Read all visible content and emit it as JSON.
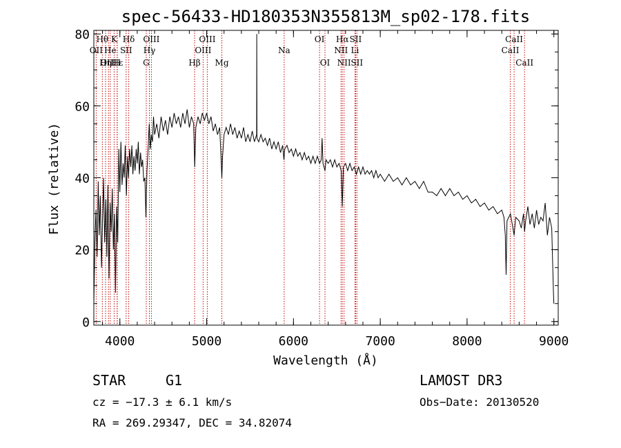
{
  "chart_data": {
    "type": "line",
    "title": "spec-56433-HD180353N355813M_sp02-178.fits",
    "xlabel": "Wavelength (Å)",
    "ylabel": "Flux (relative)",
    "xlim": [
      3700,
      9050
    ],
    "ylim": [
      -1,
      81
    ],
    "x_major_ticks": [
      4000,
      5000,
      6000,
      7000,
      8000,
      9000
    ],
    "x_minor_step": 200,
    "y_major_ticks": [
      0,
      20,
      40,
      60,
      80
    ],
    "y_minor_step": 5,
    "grid": false,
    "series": [
      {
        "name": "flux",
        "points": [
          [
            3700,
            5
          ],
          [
            3712,
            22
          ],
          [
            3725,
            31
          ],
          [
            3738,
            18
          ],
          [
            3750,
            39
          ],
          [
            3762,
            24
          ],
          [
            3775,
            35
          ],
          [
            3788,
            15
          ],
          [
            3800,
            28
          ],
          [
            3812,
            40
          ],
          [
            3825,
            22
          ],
          [
            3838,
            34
          ],
          [
            3850,
            18
          ],
          [
            3862,
            38
          ],
          [
            3875,
            12
          ],
          [
            3888,
            33
          ],
          [
            3900,
            25
          ],
          [
            3912,
            37
          ],
          [
            3925,
            20
          ],
          [
            3938,
            30
          ],
          [
            3950,
            8
          ],
          [
            3962,
            32
          ],
          [
            3975,
            22
          ],
          [
            3988,
            48
          ],
          [
            4000,
            36
          ],
          [
            4012,
            50
          ],
          [
            4025,
            38
          ],
          [
            4038,
            44
          ],
          [
            4050,
            40
          ],
          [
            4062,
            49
          ],
          [
            4075,
            35
          ],
          [
            4088,
            46
          ],
          [
            4100,
            40
          ],
          [
            4112,
            48
          ],
          [
            4125,
            43
          ],
          [
            4138,
            49
          ],
          [
            4150,
            41
          ],
          [
            4162,
            46
          ],
          [
            4175,
            42
          ],
          [
            4188,
            48
          ],
          [
            4200,
            44
          ],
          [
            4212,
            50
          ],
          [
            4225,
            41
          ],
          [
            4238,
            47
          ],
          [
            4250,
            43
          ],
          [
            4262,
            45
          ],
          [
            4275,
            39
          ],
          [
            4288,
            40
          ],
          [
            4300,
            29
          ],
          [
            4312,
            42
          ],
          [
            4325,
            48
          ],
          [
            4338,
            55
          ],
          [
            4350,
            48
          ],
          [
            4362,
            52
          ],
          [
            4375,
            50
          ],
          [
            4388,
            57
          ],
          [
            4400,
            52
          ],
          [
            4425,
            55
          ],
          [
            4450,
            51
          ],
          [
            4475,
            57
          ],
          [
            4500,
            53
          ],
          [
            4525,
            56
          ],
          [
            4550,
            52
          ],
          [
            4575,
            57
          ],
          [
            4600,
            54
          ],
          [
            4625,
            58
          ],
          [
            4650,
            55
          ],
          [
            4675,
            57
          ],
          [
            4700,
            54
          ],
          [
            4725,
            58
          ],
          [
            4750,
            55
          ],
          [
            4775,
            59
          ],
          [
            4800,
            54
          ],
          [
            4825,
            57
          ],
          [
            4850,
            55
          ],
          [
            4862,
            43
          ],
          [
            4875,
            54
          ],
          [
            4900,
            57
          ],
          [
            4925,
            55
          ],
          [
            4950,
            58
          ],
          [
            4975,
            56
          ],
          [
            5000,
            58
          ],
          [
            5025,
            55
          ],
          [
            5050,
            57
          ],
          [
            5075,
            53
          ],
          [
            5100,
            55
          ],
          [
            5125,
            52
          ],
          [
            5150,
            54
          ],
          [
            5167,
            45
          ],
          [
            5175,
            40
          ],
          [
            5183,
            46
          ],
          [
            5200,
            52
          ],
          [
            5225,
            54
          ],
          [
            5250,
            52
          ],
          [
            5275,
            55
          ],
          [
            5300,
            52
          ],
          [
            5325,
            54
          ],
          [
            5350,
            51
          ],
          [
            5375,
            53
          ],
          [
            5400,
            51
          ],
          [
            5425,
            54
          ],
          [
            5450,
            50
          ],
          [
            5475,
            52
          ],
          [
            5500,
            50
          ],
          [
            5525,
            53
          ],
          [
            5550,
            50
          ],
          [
            5575,
            52
          ],
          [
            5577,
            80
          ],
          [
            5579,
            51
          ],
          [
            5600,
            50
          ],
          [
            5625,
            52
          ],
          [
            5650,
            50
          ],
          [
            5675,
            51
          ],
          [
            5700,
            49
          ],
          [
            5725,
            51
          ],
          [
            5750,
            48
          ],
          [
            5775,
            50
          ],
          [
            5800,
            48
          ],
          [
            5825,
            50
          ],
          [
            5850,
            47
          ],
          [
            5875,
            49
          ],
          [
            5890,
            45
          ],
          [
            5900,
            48
          ],
          [
            5925,
            49
          ],
          [
            5950,
            47
          ],
          [
            5975,
            48
          ],
          [
            6000,
            46
          ],
          [
            6025,
            48
          ],
          [
            6050,
            46
          ],
          [
            6075,
            47
          ],
          [
            6100,
            45
          ],
          [
            6125,
            47
          ],
          [
            6150,
            45
          ],
          [
            6175,
            46
          ],
          [
            6200,
            44
          ],
          [
            6225,
            46
          ],
          [
            6250,
            44
          ],
          [
            6275,
            46
          ],
          [
            6300,
            44
          ],
          [
            6320,
            45
          ],
          [
            6330,
            51
          ],
          [
            6340,
            44
          ],
          [
            6363,
            42
          ],
          [
            6375,
            45
          ],
          [
            6400,
            44
          ],
          [
            6425,
            45
          ],
          [
            6450,
            43
          ],
          [
            6475,
            45
          ],
          [
            6500,
            43
          ],
          [
            6525,
            44
          ],
          [
            6550,
            42
          ],
          [
            6563,
            32
          ],
          [
            6575,
            43
          ],
          [
            6600,
            44
          ],
          [
            6625,
            42
          ],
          [
            6650,
            44
          ],
          [
            6675,
            42
          ],
          [
            6700,
            43
          ],
          [
            6725,
            41
          ],
          [
            6750,
            43
          ],
          [
            6775,
            41
          ],
          [
            6800,
            43
          ],
          [
            6825,
            41
          ],
          [
            6850,
            42
          ],
          [
            6875,
            41
          ],
          [
            6900,
            42
          ],
          [
            6925,
            40
          ],
          [
            6950,
            42
          ],
          [
            6975,
            40
          ],
          [
            7000,
            41
          ],
          [
            7050,
            39
          ],
          [
            7100,
            41
          ],
          [
            7150,
            39
          ],
          [
            7200,
            40
          ],
          [
            7250,
            38
          ],
          [
            7300,
            40
          ],
          [
            7350,
            38
          ],
          [
            7400,
            39
          ],
          [
            7450,
            37
          ],
          [
            7500,
            39
          ],
          [
            7550,
            36
          ],
          [
            7600,
            36
          ],
          [
            7650,
            35
          ],
          [
            7700,
            37
          ],
          [
            7750,
            35
          ],
          [
            7800,
            37
          ],
          [
            7850,
            35
          ],
          [
            7900,
            36
          ],
          [
            7950,
            34
          ],
          [
            8000,
            35
          ],
          [
            8050,
            33
          ],
          [
            8100,
            34
          ],
          [
            8150,
            32
          ],
          [
            8200,
            33
          ],
          [
            8250,
            31
          ],
          [
            8300,
            32
          ],
          [
            8350,
            30
          ],
          [
            8400,
            31
          ],
          [
            8425,
            29
          ],
          [
            8440,
            24
          ],
          [
            8450,
            13
          ],
          [
            8460,
            28
          ],
          [
            8500,
            30
          ],
          [
            8542,
            24
          ],
          [
            8560,
            29
          ],
          [
            8600,
            28
          ],
          [
            8625,
            26
          ],
          [
            8650,
            30
          ],
          [
            8662,
            25
          ],
          [
            8675,
            28
          ],
          [
            8700,
            32
          ],
          [
            8725,
            27
          ],
          [
            8750,
            30
          ],
          [
            8775,
            26
          ],
          [
            8800,
            31
          ],
          [
            8825,
            27
          ],
          [
            8850,
            29
          ],
          [
            8875,
            28
          ],
          [
            8900,
            33
          ],
          [
            8925,
            24
          ],
          [
            8950,
            29
          ],
          [
            8975,
            26
          ],
          [
            8995,
            8
          ],
          [
            9000,
            5
          ]
        ]
      }
    ],
    "spectral_lines": [
      {
        "label": "Hθ",
        "wavelength": 3798,
        "row": 0
      },
      {
        "label": "K",
        "wavelength": 3934,
        "row": 0
      },
      {
        "label": "Hδ",
        "wavelength": 4102,
        "row": 0
      },
      {
        "label": "OIII",
        "wavelength": 4363,
        "row": 0
      },
      {
        "label": "OIII",
        "wavelength": 5007,
        "row": 0
      },
      {
        "label": "OI",
        "wavelength": 6300,
        "row": 0
      },
      {
        "label": "Hα",
        "wavelength": 6563,
        "row": 0
      },
      {
        "label": "SII",
        "wavelength": 6716,
        "row": 0
      },
      {
        "label": "CaII",
        "wavelength": 8542,
        "row": 0
      },
      {
        "label": "OII",
        "wavelength": 3727,
        "row": 1
      },
      {
        "label": "He",
        "wavelength": 3889,
        "row": 1
      },
      {
        "label": "SII",
        "wavelength": 4072,
        "row": 1
      },
      {
        "label": "Hγ",
        "wavelength": 4340,
        "row": 1
      },
      {
        "label": "OIII",
        "wavelength": 4959,
        "row": 1
      },
      {
        "label": "Na",
        "wavelength": 5893,
        "row": 1
      },
      {
        "label": "NII",
        "wavelength": 6548,
        "row": 1
      },
      {
        "label": "Li",
        "wavelength": 6708,
        "row": 1
      },
      {
        "label": "CaII",
        "wavelength": 8498,
        "row": 1
      },
      {
        "label": "OIII",
        "wavelength": 3869,
        "row": 2
      },
      {
        "label": "Hε",
        "wavelength": 3970,
        "row": 2
      },
      {
        "label": "Hη",
        "wavelength": 3835,
        "row": 2
      },
      {
        "label": "H",
        "wavelength": 3968,
        "row": 2
      },
      {
        "label": "G",
        "wavelength": 4304,
        "row": 2
      },
      {
        "label": "Hβ",
        "wavelength": 4861,
        "row": 2
      },
      {
        "label": "Mg",
        "wavelength": 5175,
        "row": 2
      },
      {
        "label": "OI",
        "wavelength": 6363,
        "row": 2
      },
      {
        "label": "NII",
        "wavelength": 6583,
        "row": 2
      },
      {
        "label": "SII",
        "wavelength": 6731,
        "row": 2
      },
      {
        "label": "CaII",
        "wavelength": 8662,
        "row": 2
      }
    ],
    "line_markers": [
      3727,
      3798,
      3835,
      3869,
      3889,
      3934,
      3968,
      3970,
      4072,
      4102,
      4304,
      4340,
      4363,
      4861,
      4959,
      5007,
      5175,
      5893,
      6300,
      6363,
      6548,
      6563,
      6583,
      6708,
      6716,
      6731,
      8498,
      8542,
      8662
    ]
  },
  "info": {
    "class": "STAR",
    "subclass": "G1",
    "survey": "LAMOST DR3",
    "cz": "cz = −17.3 ± 6.1 km/s",
    "obs_date": "Obs−Date: 20130520",
    "coords": "RA = 269.29347, DEC =  34.82074"
  },
  "colors": {
    "axis": "#000000",
    "spectrum": "#000000",
    "line_marker": "#c00000",
    "background": "#ffffff"
  }
}
